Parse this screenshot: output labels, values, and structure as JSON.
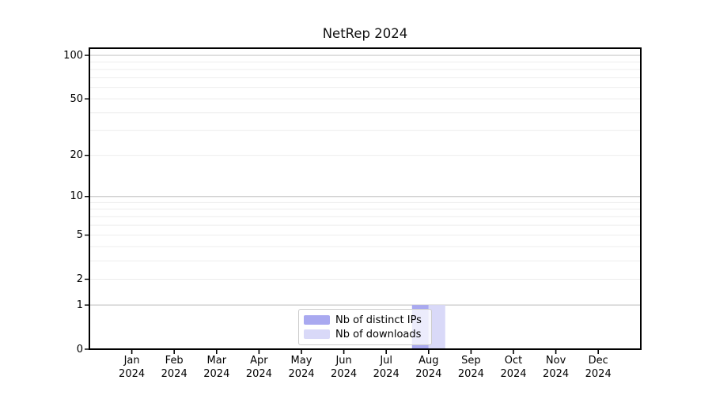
{
  "chart_data": {
    "type": "bar",
    "title": "NetRep 2024",
    "categories": [
      "Jan 2024",
      "Feb 2024",
      "Mar 2024",
      "Apr 2024",
      "May 2024",
      "Jun 2024",
      "Jul 2024",
      "Aug 2024",
      "Sep 2024",
      "Oct 2024",
      "Nov 2024",
      "Dec 2024"
    ],
    "series": [
      {
        "name": "Nb of distinct IPs",
        "color": "#a9a9f0",
        "values": [
          0,
          0,
          0,
          0,
          0,
          0,
          0,
          1,
          0,
          0,
          0,
          0
        ]
      },
      {
        "name": "Nb of downloads",
        "color": "#d9d9f8",
        "values": [
          0,
          0,
          0,
          0,
          0,
          0,
          0,
          1,
          0,
          0,
          0,
          0
        ]
      }
    ],
    "y_axis": {
      "scale": "symlog",
      "tick_labels": [
        0,
        1,
        2,
        5,
        10,
        20,
        50,
        100
      ],
      "max": 112,
      "minor_gridlines": [
        2,
        3,
        4,
        5,
        6,
        7,
        8,
        9,
        20,
        30,
        40,
        50,
        60,
        70,
        80,
        90
      ],
      "major_gridlines": [
        1,
        10,
        100
      ]
    },
    "grid": {
      "minor_color": "#ededed",
      "major_color": "#c9c9c9"
    },
    "axis_color": "#000000",
    "text_color": "#000000",
    "legend_position": "bottom-center"
  }
}
